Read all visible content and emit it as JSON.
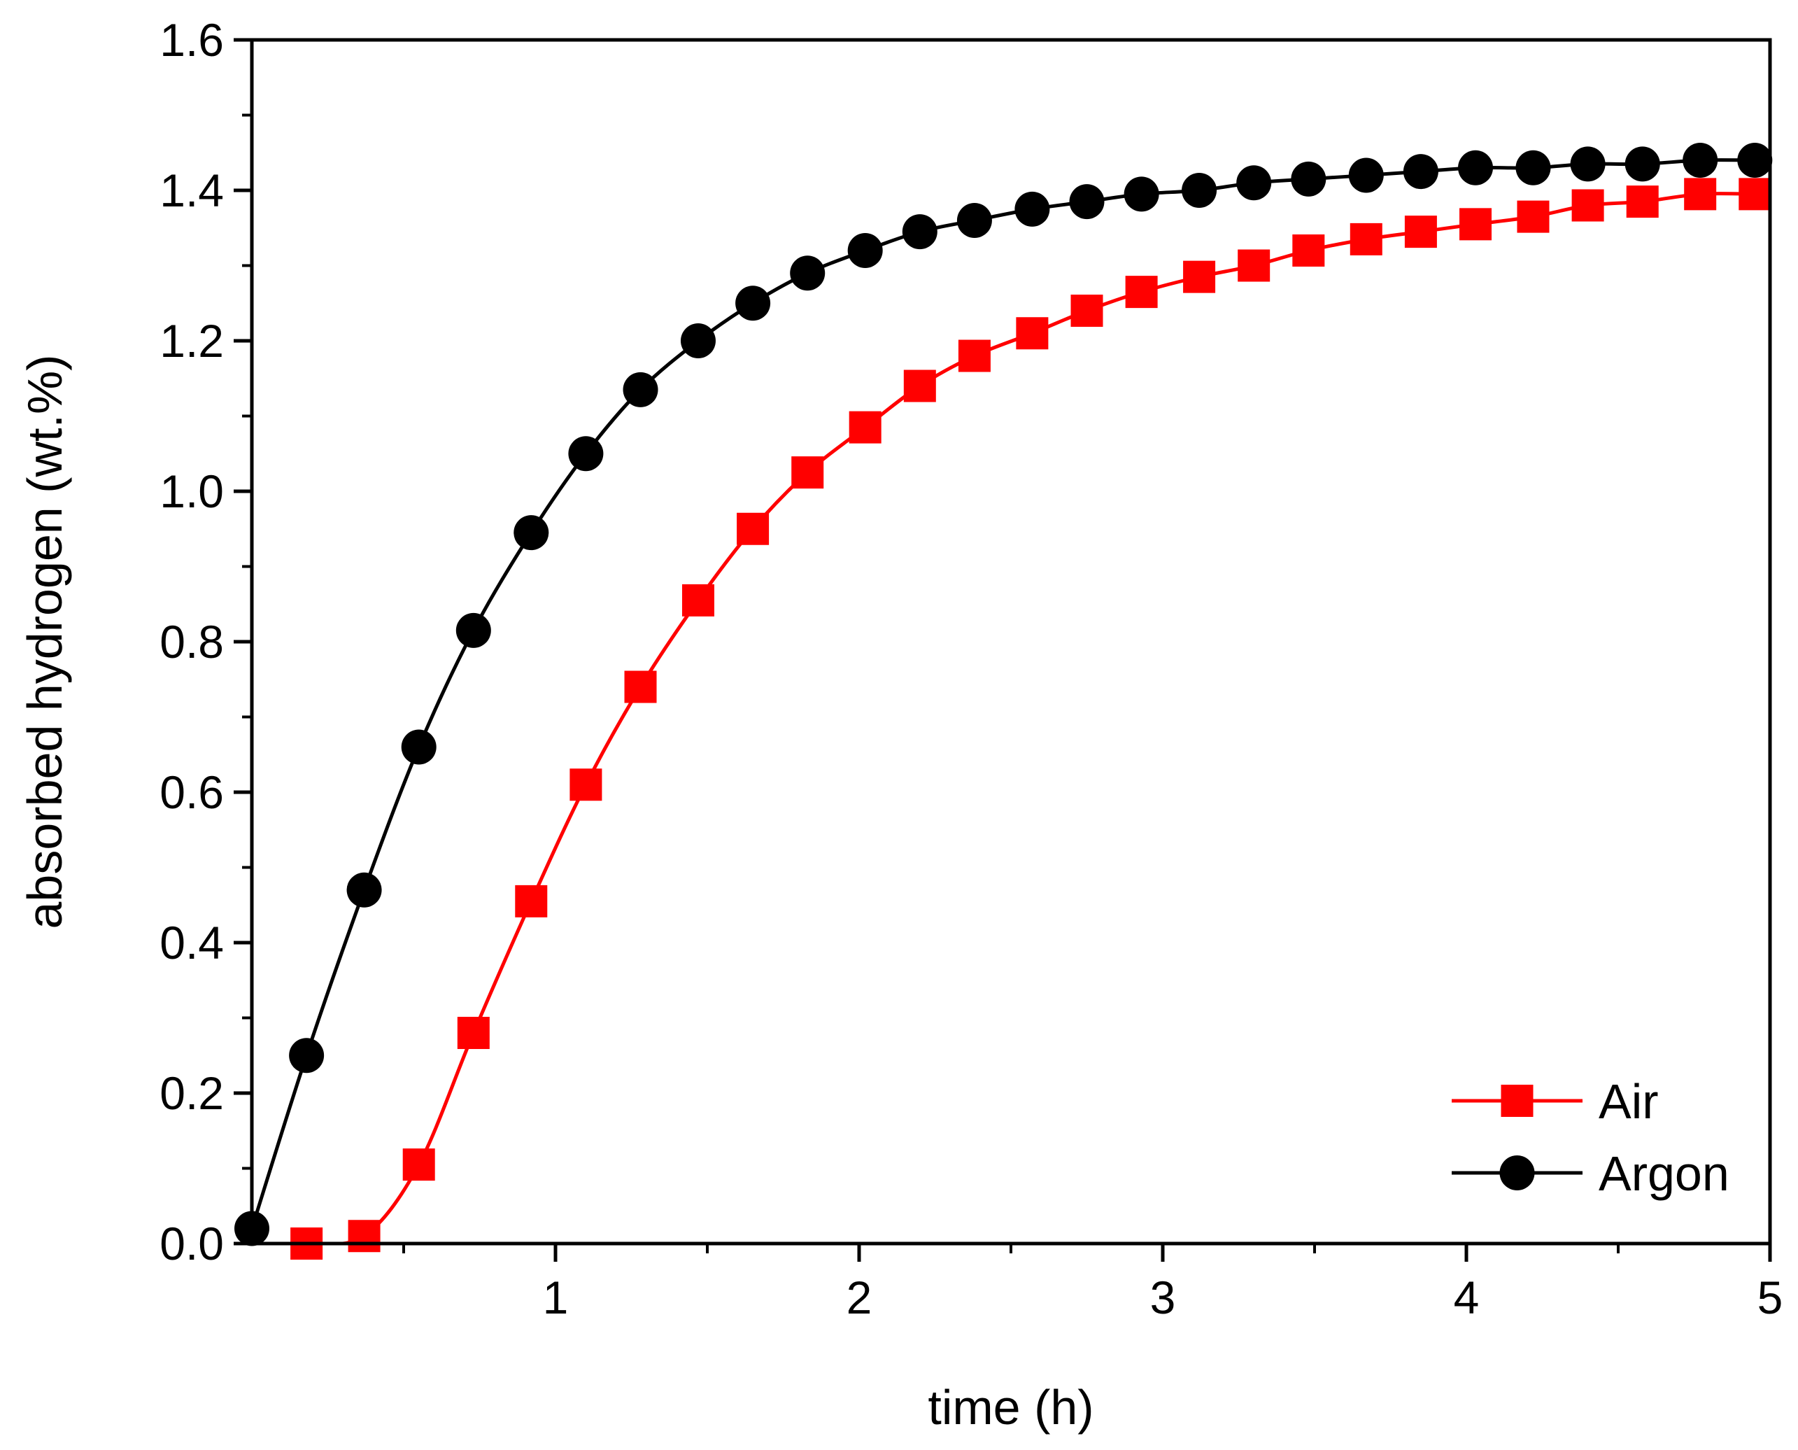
{
  "chart_data": {
    "type": "line",
    "title": "",
    "xlabel": "time (h)",
    "ylabel": "absorbed hydrogen (wt.%)",
    "xlim": [
      0,
      5
    ],
    "ylim": [
      0,
      1.6
    ],
    "x_ticks": [
      1,
      2,
      3,
      4,
      5
    ],
    "y_ticks": [
      0.0,
      0.2,
      0.4,
      0.6,
      0.8,
      1.0,
      1.2,
      1.4,
      1.6
    ],
    "x_tick_labels": [
      "1",
      "2",
      "3",
      "4",
      "5"
    ],
    "y_tick_labels": [
      "0.0",
      "0.2",
      "0.4",
      "0.6",
      "0.8",
      "1.0",
      "1.2",
      "1.4",
      "1.6"
    ],
    "grid": false,
    "legend_position": "bottom-right",
    "series": [
      {
        "name": "Air",
        "color": "#ff0000",
        "marker": "square",
        "x": [
          0.18,
          0.37,
          0.55,
          0.73,
          0.92,
          1.1,
          1.28,
          1.47,
          1.65,
          1.83,
          2.02,
          2.2,
          2.38,
          2.57,
          2.75,
          2.93,
          3.12,
          3.3,
          3.48,
          3.67,
          3.85,
          4.03,
          4.22,
          4.4,
          4.58,
          4.77,
          4.95
        ],
        "y": [
          0.0,
          0.01,
          0.105,
          0.28,
          0.455,
          0.61,
          0.74,
          0.855,
          0.95,
          1.025,
          1.085,
          1.14,
          1.18,
          1.21,
          1.24,
          1.265,
          1.285,
          1.3,
          1.32,
          1.335,
          1.345,
          1.355,
          1.365,
          1.38,
          1.385,
          1.395,
          1.395
        ]
      },
      {
        "name": "Argon",
        "color": "#000000",
        "marker": "circle",
        "x": [
          0.0,
          0.18,
          0.37,
          0.55,
          0.73,
          0.92,
          1.1,
          1.28,
          1.47,
          1.65,
          1.83,
          2.02,
          2.2,
          2.38,
          2.57,
          2.75,
          2.93,
          3.12,
          3.3,
          3.48,
          3.67,
          3.85,
          4.03,
          4.22,
          4.4,
          4.58,
          4.77,
          4.95
        ],
        "y": [
          0.02,
          0.25,
          0.47,
          0.66,
          0.815,
          0.945,
          1.05,
          1.135,
          1.2,
          1.25,
          1.29,
          1.32,
          1.345,
          1.36,
          1.375,
          1.385,
          1.395,
          1.4,
          1.41,
          1.415,
          1.42,
          1.425,
          1.43,
          1.43,
          1.435,
          1.435,
          1.44,
          1.44
        ]
      }
    ]
  }
}
